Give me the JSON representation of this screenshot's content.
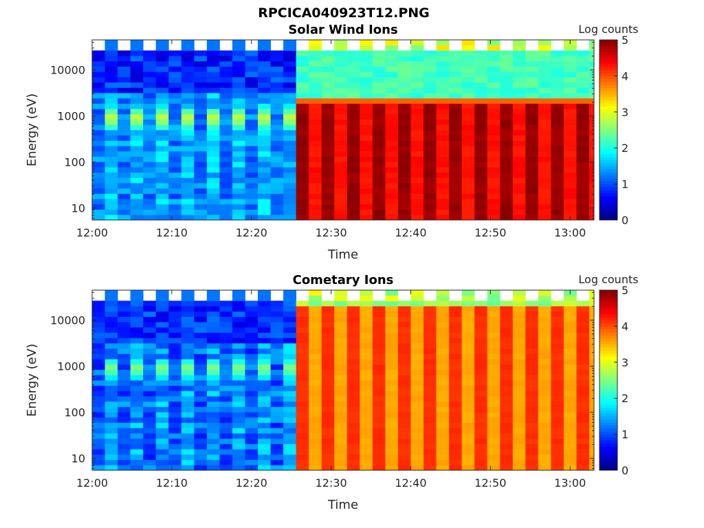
{
  "figure_title": "RPCICA040923T12.PNG",
  "colors": {
    "colormap": "jet",
    "background": "#ffffff",
    "blank_bins": "#ffffff"
  },
  "chart_data": [
    {
      "type": "heatmap",
      "title": "Solar Wind Ions",
      "xlabel": "Time",
      "ylabel": "Energy (eV)",
      "colorbar_label": "Log counts",
      "yscale": "log",
      "xlim": [
        "12:00",
        "13:03"
      ],
      "ylim": [
        5.5,
        45000
      ],
      "xticks": [
        "12:00",
        "12:10",
        "12:20",
        "12:30",
        "12:40",
        "12:50",
        "13:00"
      ],
      "yticks": [
        10,
        100,
        1000,
        10000
      ],
      "ytick_labels": [
        "10",
        "100",
        "1000",
        "10000"
      ],
      "clim": [
        0,
        5
      ],
      "cticks": [
        "0",
        "1",
        "2",
        "3",
        "4",
        "5"
      ],
      "time_bin_minutes": 1.6,
      "transition_time": "12:26",
      "before": {
        "low_energy_log_counts": [
          1.2,
          1.9
        ],
        "peak_energy_eV": 900,
        "peak_log_counts": 2.9,
        "high_energy_log_counts": [
          0.4,
          1.2
        ]
      },
      "after": {
        "low_energy_log_counts": [
          4.0,
          4.9
        ],
        "upper_cutoff_eV": 2700,
        "cutoff_edge_log_counts": 3.9,
        "high_energy_log_counts": [
          2.0,
          2.4
        ],
        "top_band_log_counts": [
          2.4,
          3.3
        ]
      }
    },
    {
      "type": "heatmap",
      "title": "Cometary Ions",
      "xlabel": "Time",
      "ylabel": "Energy (eV)",
      "colorbar_label": "Log counts",
      "yscale": "log",
      "xlim": [
        "12:00",
        "13:03"
      ],
      "ylim": [
        5.5,
        45000
      ],
      "xticks": [
        "12:00",
        "12:10",
        "12:20",
        "12:30",
        "12:40",
        "12:50",
        "13:00"
      ],
      "yticks": [
        10,
        100,
        1000,
        10000
      ],
      "ytick_labels": [
        "10",
        "100",
        "1000",
        "10000"
      ],
      "clim": [
        0,
        5
      ],
      "cticks": [
        "0",
        "1",
        "2",
        "3",
        "4",
        "5"
      ],
      "time_bin_minutes": 1.6,
      "transition_time": "12:26",
      "before": {
        "low_energy_log_counts": [
          1.0,
          1.8
        ],
        "peak_energy_eV": 900,
        "peak_log_counts": 2.6,
        "high_energy_log_counts": [
          0.5,
          1.2
        ]
      },
      "after": {
        "log_counts_range": [
          3.4,
          4.2
        ],
        "upper_cutoff_eV": 18000,
        "top_band_log_counts": [
          2.4,
          3.2
        ]
      }
    }
  ]
}
